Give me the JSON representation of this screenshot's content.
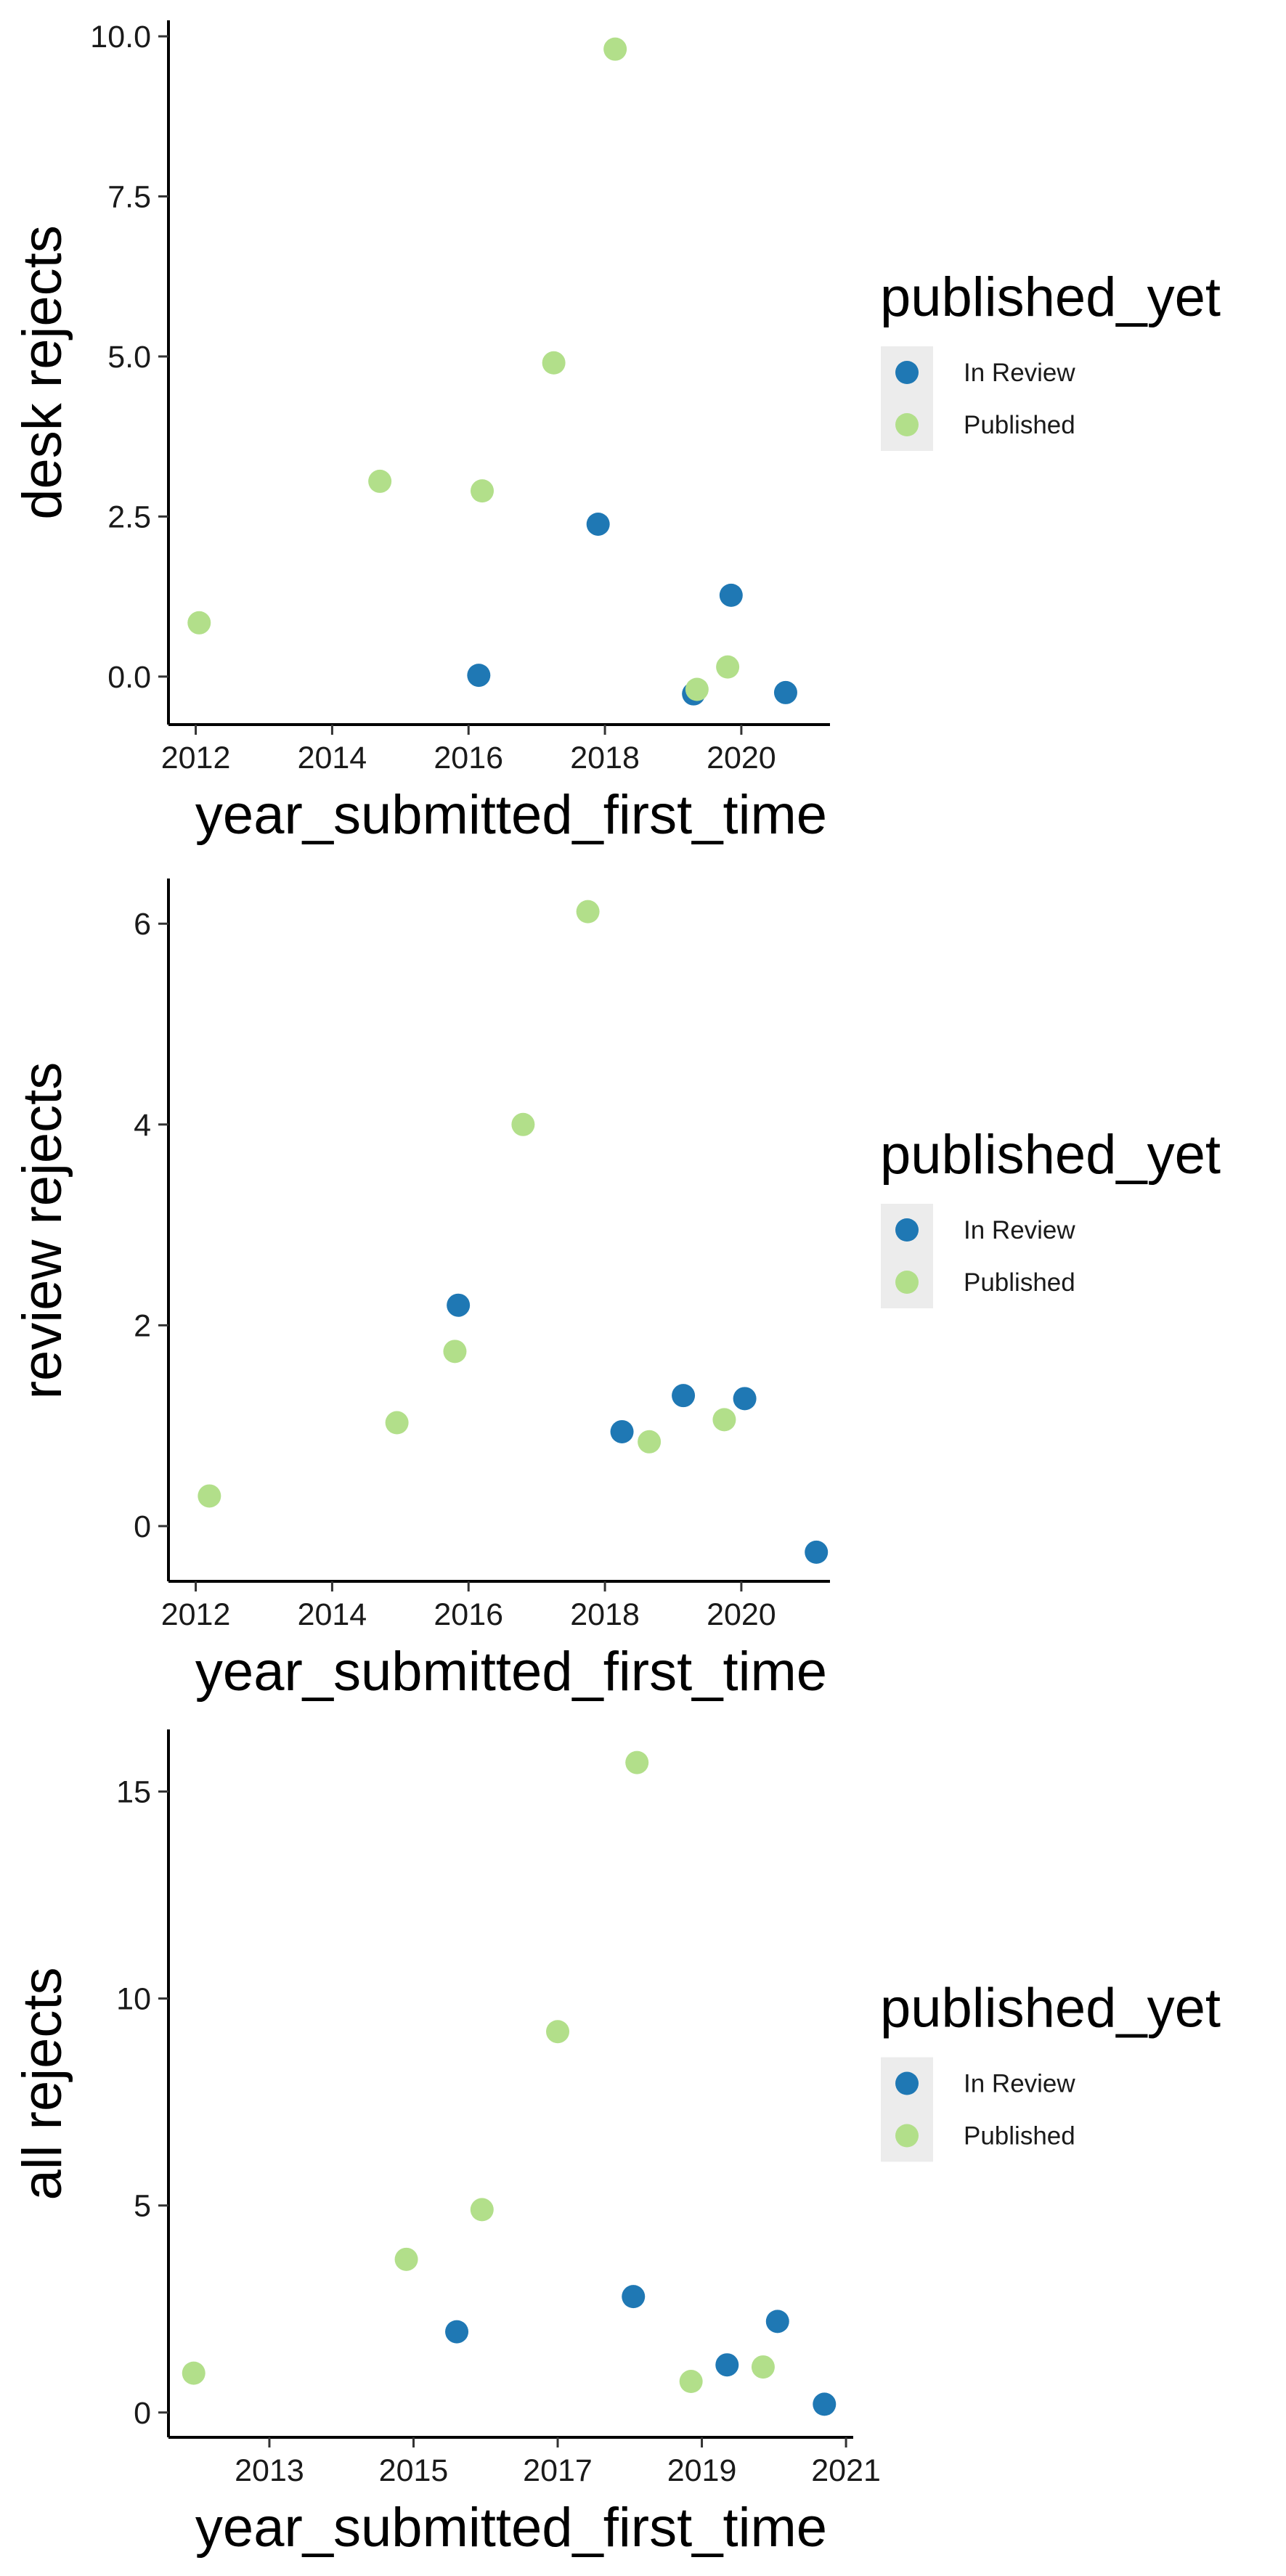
{
  "legend": {
    "title": "published_yet",
    "entries": [
      {
        "label": "In Review",
        "color": "#1f78b4"
      },
      {
        "label": "Published",
        "color": "#b2df8a"
      }
    ]
  },
  "chart_data": [
    {
      "type": "scatter",
      "xlabel": "year_submitted_first_time",
      "ylabel": "desk rejects",
      "xlim": [
        2011.6,
        2021.3
      ],
      "ylim": [
        -0.75,
        10.25
      ],
      "x_ticks": [
        2012,
        2014,
        2016,
        2018,
        2020
      ],
      "x_tick_labels": [
        "2012",
        "2014",
        "2016",
        "2018",
        "2020"
      ],
      "y_ticks": [
        0,
        2.5,
        5,
        7.5,
        10
      ],
      "y_tick_labels": [
        "0.0",
        "2.5",
        "5.0",
        "7.5",
        "10.0"
      ],
      "grid": false,
      "legend_position": "right",
      "series": [
        {
          "name": "In Review",
          "color": "#1f78b4",
          "points": [
            {
              "x": 2016.15,
              "y": 0.02
            },
            {
              "x": 2017.9,
              "y": 2.38
            },
            {
              "x": 2019.3,
              "y": -0.27
            },
            {
              "x": 2019.85,
              "y": 1.27
            },
            {
              "x": 2020.65,
              "y": -0.25
            }
          ]
        },
        {
          "name": "Published",
          "color": "#b2df8a",
          "points": [
            {
              "x": 2012.05,
              "y": 0.84
            },
            {
              "x": 2014.7,
              "y": 3.05
            },
            {
              "x": 2016.2,
              "y": 2.9
            },
            {
              "x": 2017.25,
              "y": 4.9
            },
            {
              "x": 2018.15,
              "y": 9.8
            },
            {
              "x": 2019.35,
              "y": -0.2
            },
            {
              "x": 2019.8,
              "y": 0.15
            }
          ]
        }
      ]
    },
    {
      "type": "scatter",
      "xlabel": "year_submitted_first_time",
      "ylabel": "review rejects",
      "xlim": [
        2011.6,
        2021.3
      ],
      "ylim": [
        -0.55,
        6.45
      ],
      "x_ticks": [
        2012,
        2014,
        2016,
        2018,
        2020
      ],
      "x_tick_labels": [
        "2012",
        "2014",
        "2016",
        "2018",
        "2020"
      ],
      "y_ticks": [
        0,
        2,
        4,
        6
      ],
      "y_tick_labels": [
        "0",
        "2",
        "4",
        "6"
      ],
      "grid": false,
      "legend_position": "right",
      "series": [
        {
          "name": "In Review",
          "color": "#1f78b4",
          "points": [
            {
              "x": 2015.85,
              "y": 2.2
            },
            {
              "x": 2018.25,
              "y": 0.94
            },
            {
              "x": 2019.15,
              "y": 1.3
            },
            {
              "x": 2020.05,
              "y": 1.27
            },
            {
              "x": 2021.1,
              "y": -0.26
            }
          ]
        },
        {
          "name": "Published",
          "color": "#b2df8a",
          "points": [
            {
              "x": 2012.2,
              "y": 0.3
            },
            {
              "x": 2014.95,
              "y": 1.03
            },
            {
              "x": 2015.8,
              "y": 1.74
            },
            {
              "x": 2016.8,
              "y": 4.0
            },
            {
              "x": 2017.75,
              "y": 6.12
            },
            {
              "x": 2018.65,
              "y": 0.84
            },
            {
              "x": 2019.75,
              "y": 1.06
            }
          ]
        }
      ]
    },
    {
      "type": "scatter",
      "xlabel": "year_submitted_first_time",
      "ylabel": "all rejects",
      "xlim": [
        2011.6,
        2021.1
      ],
      "ylim": [
        -0.6,
        16.5
      ],
      "x_ticks": [
        2013,
        2015,
        2017,
        2019,
        2021
      ],
      "x_tick_labels": [
        "2013",
        "2015",
        "2017",
        "2019",
        "2021"
      ],
      "y_ticks": [
        0,
        5,
        10,
        15
      ],
      "y_tick_labels": [
        "0",
        "5",
        "10",
        "15"
      ],
      "grid": false,
      "legend_position": "right",
      "series": [
        {
          "name": "In Review",
          "color": "#1f78b4",
          "points": [
            {
              "x": 2015.6,
              "y": 1.95
            },
            {
              "x": 2018.05,
              "y": 2.8
            },
            {
              "x": 2019.35,
              "y": 1.15
            },
            {
              "x": 2020.05,
              "y": 2.2
            },
            {
              "x": 2020.7,
              "y": 0.2
            }
          ]
        },
        {
          "name": "Published",
          "color": "#b2df8a",
          "points": [
            {
              "x": 2011.95,
              "y": 0.95
            },
            {
              "x": 2014.9,
              "y": 3.7
            },
            {
              "x": 2015.95,
              "y": 4.9
            },
            {
              "x": 2017.0,
              "y": 9.2
            },
            {
              "x": 2018.1,
              "y": 15.7
            },
            {
              "x": 2018.85,
              "y": 0.75
            },
            {
              "x": 2019.85,
              "y": 1.1
            }
          ]
        }
      ]
    }
  ]
}
